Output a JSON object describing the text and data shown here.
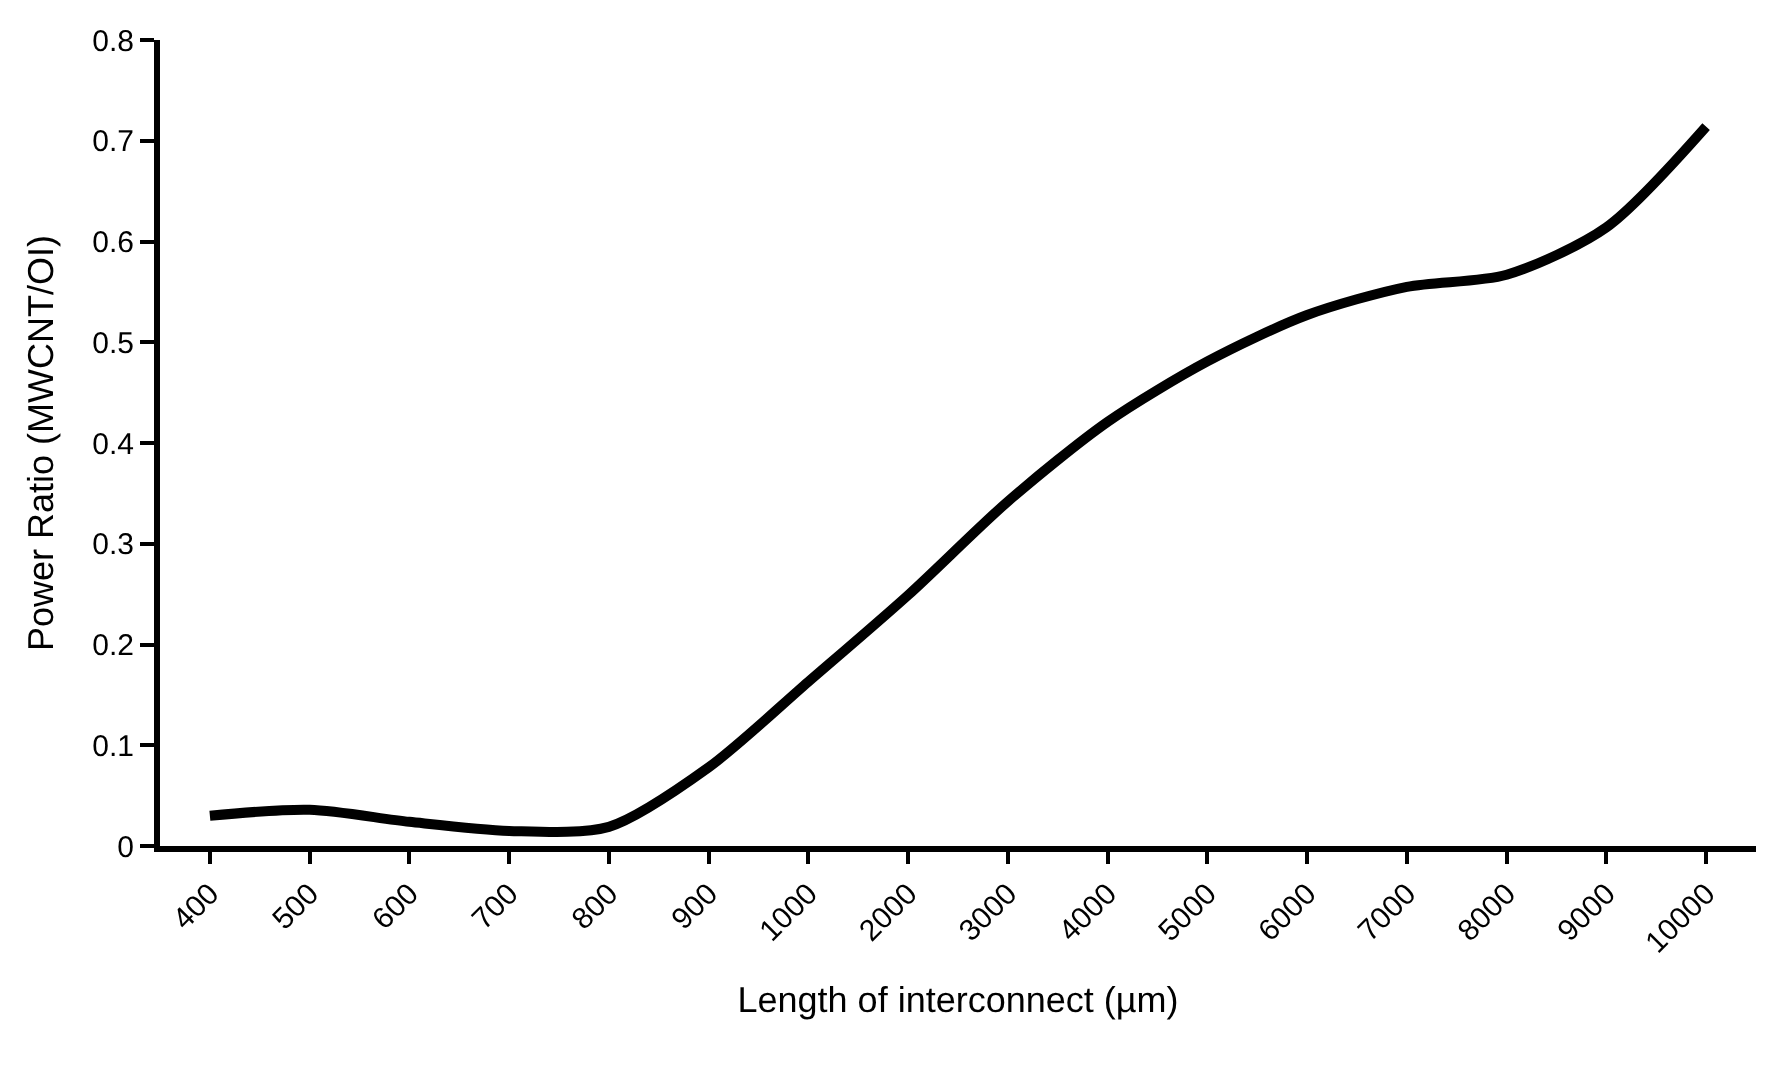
{
  "chart_data": {
    "type": "line",
    "xlabel": "Length of interconnect (µm)",
    "ylabel": "Power Ratio (MWCNT/OI)",
    "categories": [
      "400",
      "500",
      "600",
      "700",
      "800",
      "900",
      "1000",
      "2000",
      "3000",
      "4000",
      "5000",
      "6000",
      "7000",
      "8000",
      "9000",
      "10000"
    ],
    "series": [
      {
        "color": "#000000",
        "values": [
          0.03,
          0.036,
          0.024,
          0.015,
          0.019,
          0.078,
          0.163,
          0.249,
          0.342,
          0.421,
          0.481,
          0.527,
          0.555,
          0.567,
          0.614,
          0.714
        ]
      }
    ],
    "ylim": [
      0,
      0.8
    ],
    "yticks": [
      0,
      0.1,
      0.2,
      0.3,
      0.4,
      0.5,
      0.6,
      0.7,
      0.8
    ],
    "marker": "none",
    "line_style": "solid"
  }
}
